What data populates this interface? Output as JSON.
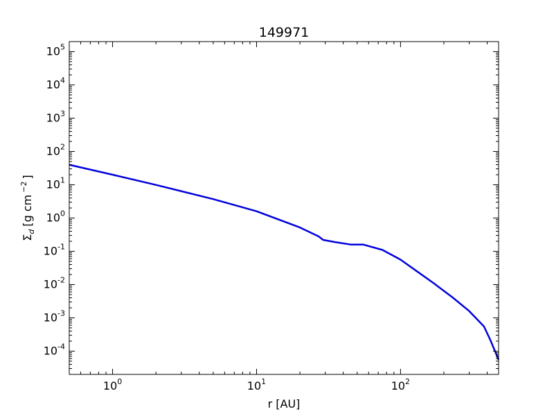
{
  "chart_data": {
    "type": "line",
    "title": "149971",
    "xlabel": "r [AU]",
    "ylabel": {
      "symbol": "Σ",
      "subscript": "d",
      "units_prefix": "[g cm",
      "units_exp": "−2",
      "units_suffix": "]"
    },
    "xscale": "log",
    "yscale": "log",
    "xlim": [
      0.5,
      480
    ],
    "ylim": [
      2e-05,
      200000
    ],
    "grid": false,
    "series_color": "#0000dd",
    "x_ticks": [
      {
        "base": "10",
        "exp": "0",
        "value": 1
      },
      {
        "base": "10",
        "exp": "1",
        "value": 10
      },
      {
        "base": "10",
        "exp": "2",
        "value": 100
      }
    ],
    "y_ticks": [
      {
        "base": "10",
        "exp": "5",
        "value": 100000
      },
      {
        "base": "10",
        "exp": "4",
        "value": 10000
      },
      {
        "base": "10",
        "exp": "3",
        "value": 1000
      },
      {
        "base": "10",
        "exp": "2",
        "value": 100
      },
      {
        "base": "10",
        "exp": "1",
        "value": 10
      },
      {
        "base": "10",
        "exp": "0",
        "value": 1
      },
      {
        "base": "10",
        "exp": "-1",
        "value": 0.1
      },
      {
        "base": "10",
        "exp": "-2",
        "value": 0.01
      },
      {
        "base": "10",
        "exp": "-3",
        "value": 0.001
      },
      {
        "base": "10",
        "exp": "-4",
        "value": 0.0001
      }
    ],
    "series": [
      {
        "x": [
          0.5,
          1,
          2,
          5,
          10,
          20,
          27,
          29,
          35,
          45,
          55,
          75,
          100,
          130,
          170,
          230,
          300,
          380,
          420,
          480
        ],
        "y": [
          40,
          20,
          9.9,
          3.7,
          1.6,
          0.52,
          0.28,
          0.22,
          0.19,
          0.16,
          0.16,
          0.11,
          0.056,
          0.025,
          0.011,
          0.0041,
          0.0016,
          0.00055,
          0.00022,
          5.5e-05
        ]
      }
    ]
  }
}
